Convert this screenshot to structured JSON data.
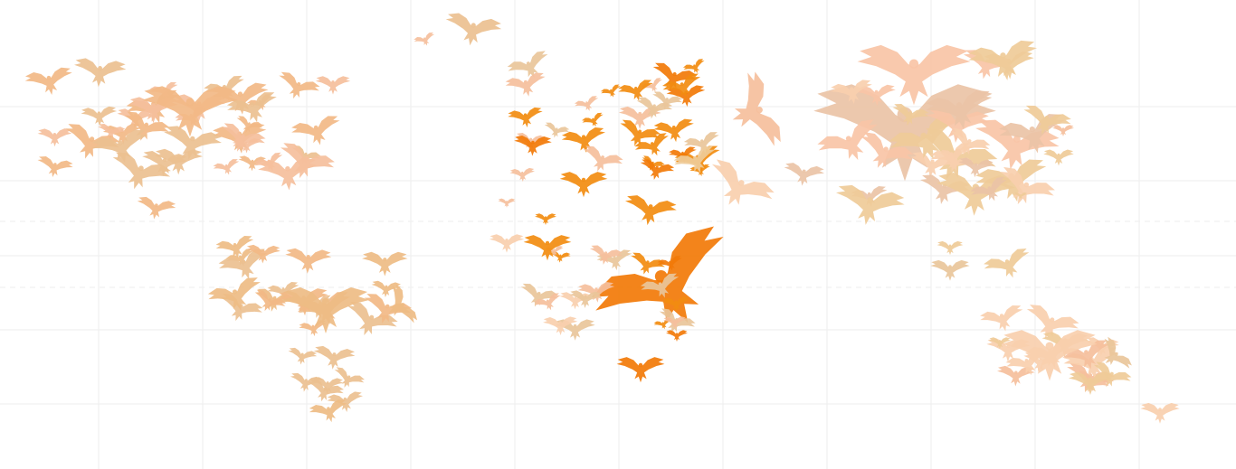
{
  "map": {
    "marker_icon": "bird-icon",
    "colors": {
      "europe_africa_high": "#f27a08",
      "europe_high": "#f28c10",
      "north_america": "#f2b886",
      "north_america_alt": "#ecc090",
      "south_america": "#eebc84",
      "asia": "#eac3a6",
      "asia_alt": "#f8c4a6",
      "asia_sand": "#efcb98",
      "peach": "#f5bf9c",
      "light_peach": "#f8cfae",
      "tan": "#e9c69a",
      "grid": "#eeeeee"
    }
  }
}
